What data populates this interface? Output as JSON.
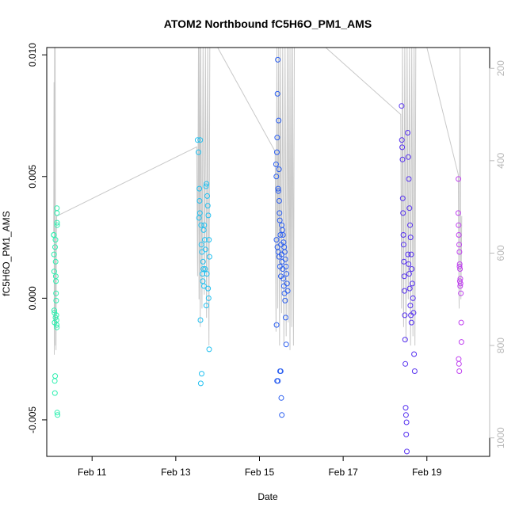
{
  "chart_data": {
    "type": "scatter",
    "title": "ATOM2 Northbound fC5H6O_PM1_AMS",
    "xlabel": "Date",
    "ylabel": "fC5H6O_PM1_AMS",
    "xlim": [
      "2016-02-09T22:00",
      "2016-02-20T12:00"
    ],
    "ylim": [
      -0.0065,
      0.0103
    ],
    "y_ticks": [
      "-0.005",
      "0.000",
      "0.005",
      "0.010"
    ],
    "x_ticks": [
      {
        "t": "2016-02-11T00:00",
        "label": "Feb 11"
      },
      {
        "t": "2016-02-13T00:00",
        "label": "Feb 13"
      },
      {
        "t": "2016-02-15T00:00",
        "label": "Feb 15"
      },
      {
        "t": "2016-02-17T00:00",
        "label": "Feb 17"
      },
      {
        "t": "2016-02-19T00:00",
        "label": "Feb 19"
      }
    ],
    "right_axis": {
      "ylim": [
        1040,
        155
      ],
      "ticks": [
        "200",
        "400",
        "600",
        "800",
        "1000"
      ],
      "color": "#bbbbbb"
    },
    "line_color": "#c8c8c8",
    "colors": [
      "#2ef0b0",
      "#22c0f0",
      "#2a5ef0",
      "#5530f0",
      "#c040f0"
    ],
    "altitude_trace": [
      [
        "2016-02-10T02:00",
        555
      ],
      [
        "2016-02-10T02:10",
        230
      ],
      [
        "2016-02-10T02:20",
        820
      ],
      [
        "2016-02-10T02:30",
        155
      ],
      [
        "2016-02-10T02:40",
        760
      ],
      [
        "2016-02-10T02:50",
        155
      ],
      [
        "2016-02-10T03:00",
        800
      ],
      [
        "2016-02-10T03:10",
        620
      ],
      [
        "2016-02-10T03:20",
        810
      ],
      [
        "2016-02-10T03:30",
        560
      ],
      [
        "2016-02-10T03:40",
        520
      ],
      [
        "2016-02-13T12:00",
        370
      ],
      [
        "2016-02-13T12:30",
        650
      ],
      [
        "2016-02-13T13:00",
        155
      ],
      [
        "2016-02-13T13:20",
        700
      ],
      [
        "2016-02-13T13:40",
        155
      ],
      [
        "2016-02-13T14:00",
        760
      ],
      [
        "2016-02-13T14:20",
        155
      ],
      [
        "2016-02-13T15:00",
        720
      ],
      [
        "2016-02-13T15:40",
        155
      ],
      [
        "2016-02-13T16:20",
        690
      ],
      [
        "2016-02-13T17:00",
        155
      ],
      [
        "2016-02-13T17:40",
        740
      ],
      [
        "2016-02-13T18:20",
        155
      ],
      [
        "2016-02-13T19:00",
        800
      ],
      [
        "2016-02-13T19:30",
        155
      ],
      [
        "2016-02-14T00:00",
        155
      ],
      [
        "2016-02-15T09:00",
        380
      ],
      [
        "2016-02-15T09:30",
        770
      ],
      [
        "2016-02-15T10:00",
        155
      ],
      [
        "2016-02-15T10:30",
        720
      ],
      [
        "2016-02-15T11:00",
        155
      ],
      [
        "2016-02-15T11:30",
        800
      ],
      [
        "2016-02-15T12:00",
        155
      ],
      [
        "2016-02-15T12:40",
        730
      ],
      [
        "2016-02-15T13:20",
        155
      ],
      [
        "2016-02-15T14:00",
        800
      ],
      [
        "2016-02-15T14:40",
        155
      ],
      [
        "2016-02-15T15:20",
        780
      ],
      [
        "2016-02-15T16:00",
        155
      ],
      [
        "2016-02-15T16:30",
        750
      ],
      [
        "2016-02-15T17:00",
        155
      ],
      [
        "2016-02-15T17:30",
        810
      ],
      [
        "2016-02-15T18:00",
        155
      ],
      [
        "2016-02-15T18:30",
        760
      ],
      [
        "2016-02-15T19:00",
        155
      ],
      [
        "2016-02-15T19:30",
        800
      ],
      [
        "2016-02-15T20:00",
        155
      ],
      [
        "2016-02-16T14:00",
        155
      ],
      [
        "2016-02-18T09:00",
        300
      ],
      [
        "2016-02-18T09:30",
        720
      ],
      [
        "2016-02-18T10:00",
        155
      ],
      [
        "2016-02-18T10:40",
        760
      ],
      [
        "2016-02-18T11:20",
        155
      ],
      [
        "2016-02-18T12:00",
        790
      ],
      [
        "2016-02-18T12:40",
        155
      ],
      [
        "2016-02-18T13:20",
        700
      ],
      [
        "2016-02-18T14:00",
        155
      ],
      [
        "2016-02-18T14:40",
        800
      ],
      [
        "2016-02-18T15:20",
        155
      ],
      [
        "2016-02-18T16:00",
        780
      ],
      [
        "2016-02-18T16:40",
        155
      ],
      [
        "2016-02-18T17:10",
        800
      ],
      [
        "2016-02-18T17:40",
        155
      ],
      [
        "2016-02-19T00:00",
        155
      ],
      [
        "2016-02-19T18:00",
        430
      ],
      [
        "2016-02-19T18:30",
        720
      ],
      [
        "2016-02-19T19:00",
        155
      ],
      [
        "2016-02-19T19:30",
        700
      ],
      [
        "2016-02-19T20:00",
        520
      ]
    ],
    "series": [
      {
        "values": [
          [
            "2016-02-10T02:00",
            0.0026
          ],
          [
            "2016-02-10T02:05",
            0.0026
          ],
          [
            "2016-02-10T02:10",
            0.0018
          ],
          [
            "2016-02-10T02:15",
            0.0011
          ],
          [
            "2016-02-10T02:20",
            -0.0005
          ],
          [
            "2016-02-10T02:25",
            -0.0006
          ],
          [
            "2016-02-10T02:30",
            -0.001
          ],
          [
            "2016-02-10T02:35",
            -0.0034
          ],
          [
            "2016-02-10T02:40",
            -0.0039
          ],
          [
            "2016-02-10T02:50",
            -0.0032
          ],
          [
            "2016-02-10T03:00",
            0.0024
          ],
          [
            "2016-02-10T03:05",
            0.0015
          ],
          [
            "2016-02-10T03:10",
            0.0009
          ],
          [
            "2016-02-10T03:15",
            0.0007
          ],
          [
            "2016-02-10T03:20",
            0.0002
          ],
          [
            "2016-02-10T03:25",
            -0.0001
          ],
          [
            "2016-02-10T03:30",
            -0.0007
          ],
          [
            "2016-02-10T03:35",
            -0.0009
          ],
          [
            "2016-02-10T03:40",
            -0.0011
          ],
          [
            "2016-02-10T03:45",
            -0.0012
          ],
          [
            "2016-02-10T03:50",
            0.0037
          ],
          [
            "2016-02-10T03:52",
            0.0035
          ],
          [
            "2016-02-10T03:54",
            0.0031
          ],
          [
            "2016-02-10T03:56",
            0.003
          ],
          [
            "2016-02-10T04:00",
            -0.0047
          ],
          [
            "2016-02-10T04:10",
            -0.0048
          ],
          [
            "2016-02-10T02:45",
            0.0021
          ],
          [
            "2016-02-10T03:00",
            -0.0008
          ]
        ]
      },
      {
        "values": [
          [
            "2016-02-13T12:30",
            0.0065
          ],
          [
            "2016-02-13T13:00",
            0.006
          ],
          [
            "2016-02-13T14:00",
            0.0065
          ],
          [
            "2016-02-13T13:30",
            0.0045
          ],
          [
            "2016-02-13T13:40",
            0.004
          ],
          [
            "2016-02-13T13:20",
            0.0033
          ],
          [
            "2016-02-13T13:50",
            0.0035
          ],
          [
            "2016-02-13T14:30",
            0.003
          ],
          [
            "2016-02-13T14:40",
            0.0022
          ],
          [
            "2016-02-13T15:00",
            0.0019
          ],
          [
            "2016-02-13T15:20",
            0.001
          ],
          [
            "2016-02-13T15:40",
            0.0015
          ],
          [
            "2016-02-13T16:00",
            0.0028
          ],
          [
            "2016-02-13T16:20",
            0.003
          ],
          [
            "2016-02-13T16:40",
            0.0024
          ],
          [
            "2016-02-13T17:00",
            0.002
          ],
          [
            "2016-02-13T17:20",
            0.0046
          ],
          [
            "2016-02-13T17:40",
            0.0047
          ],
          [
            "2016-02-13T18:00",
            0.0042
          ],
          [
            "2016-02-13T18:20",
            0.0038
          ],
          [
            "2016-02-13T18:40",
            0.0034
          ],
          [
            "2016-02-13T19:00",
            0.0024
          ],
          [
            "2016-02-13T14:10",
            -0.0009
          ],
          [
            "2016-02-13T14:50",
            -0.0031
          ],
          [
            "2016-02-13T14:20",
            -0.0035
          ],
          [
            "2016-02-13T19:10",
            -0.0021
          ],
          [
            "2016-02-13T16:10",
            0.0005
          ],
          [
            "2016-02-13T16:50",
            0.0012
          ],
          [
            "2016-02-13T17:50",
            0.001
          ],
          [
            "2016-02-13T18:30",
            0.0004
          ],
          [
            "2016-02-13T17:30",
            -0.0003
          ],
          [
            "2016-02-13T18:50",
            0.0
          ],
          [
            "2016-02-13T15:30",
            0.0007
          ],
          [
            "2016-02-13T19:20",
            0.0017
          ],
          [
            "2016-02-13T15:50",
            0.0012
          ]
        ]
      },
      {
        "values": [
          [
            "2016-02-15T09:30",
            0.0055
          ],
          [
            "2016-02-15T09:40",
            0.005
          ],
          [
            "2016-02-15T10:00",
            0.006
          ],
          [
            "2016-02-15T10:10",
            0.0066
          ],
          [
            "2016-02-15T10:20",
            0.0084
          ],
          [
            "2016-02-15T10:30",
            0.0098
          ],
          [
            "2016-02-15T11:00",
            0.0073
          ],
          [
            "2016-02-15T10:40",
            0.0045
          ],
          [
            "2016-02-15T10:50",
            0.0044
          ],
          [
            "2016-02-15T11:10",
            0.0053
          ],
          [
            "2016-02-15T11:20",
            0.004
          ],
          [
            "2016-02-15T11:30",
            0.0035
          ],
          [
            "2016-02-15T11:40",
            0.0032
          ],
          [
            "2016-02-15T12:00",
            0.0026
          ],
          [
            "2016-02-15T12:20",
            0.0022
          ],
          [
            "2016-02-15T12:40",
            0.0018
          ],
          [
            "2016-02-15T13:00",
            0.0015
          ],
          [
            "2016-02-15T13:20",
            0.0012
          ],
          [
            "2016-02-15T13:40",
            0.0008
          ],
          [
            "2016-02-15T14:00",
            0.0005
          ],
          [
            "2016-02-15T14:20",
            0.0002
          ],
          [
            "2016-02-15T14:40",
            -0.0001
          ],
          [
            "2016-02-15T15:00",
            -0.0008
          ],
          [
            "2016-02-15T09:50",
            -0.0011
          ],
          [
            "2016-02-15T10:05",
            -0.0034
          ],
          [
            "2016-02-15T10:35",
            -0.0034
          ],
          [
            "2016-02-15T11:50",
            -0.003
          ],
          [
            "2016-02-15T12:10",
            -0.003
          ],
          [
            "2016-02-15T12:30",
            -0.0041
          ],
          [
            "2016-02-15T12:50",
            -0.0048
          ],
          [
            "2016-02-15T15:20",
            -0.0019
          ],
          [
            "2016-02-15T09:45",
            0.0024
          ],
          [
            "2016-02-15T10:15",
            0.0021
          ],
          [
            "2016-02-15T10:45",
            0.0019
          ],
          [
            "2016-02-15T11:15",
            0.0017
          ],
          [
            "2016-02-15T11:45",
            0.0013
          ],
          [
            "2016-02-15T12:15",
            0.0009
          ],
          [
            "2016-02-15T12:45",
            0.003
          ],
          [
            "2016-02-15T13:10",
            0.0028
          ],
          [
            "2016-02-15T13:30",
            0.0026
          ],
          [
            "2016-02-15T13:50",
            0.0023
          ],
          [
            "2016-02-15T14:10",
            0.0021
          ],
          [
            "2016-02-15T14:30",
            0.0019
          ],
          [
            "2016-02-15T14:50",
            0.0016
          ],
          [
            "2016-02-15T15:10",
            0.0013
          ],
          [
            "2016-02-15T15:30",
            0.001
          ],
          [
            "2016-02-15T15:50",
            0.0006
          ],
          [
            "2016-02-15T16:10",
            0.0003
          ]
        ]
      },
      {
        "values": [
          [
            "2016-02-18T09:30",
            0.0079
          ],
          [
            "2016-02-18T09:40",
            0.0065
          ],
          [
            "2016-02-18T09:50",
            0.0062
          ],
          [
            "2016-02-18T10:00",
            0.0057
          ],
          [
            "2016-02-18T10:10",
            0.0041
          ],
          [
            "2016-02-18T10:20",
            0.0035
          ],
          [
            "2016-02-18T10:30",
            0.0026
          ],
          [
            "2016-02-18T10:40",
            0.0022
          ],
          [
            "2016-02-18T10:50",
            0.0015
          ],
          [
            "2016-02-18T11:00",
            0.0009
          ],
          [
            "2016-02-18T11:10",
            0.0003
          ],
          [
            "2016-02-18T11:20",
            -0.0007
          ],
          [
            "2016-02-18T11:30",
            -0.0017
          ],
          [
            "2016-02-18T11:40",
            -0.0027
          ],
          [
            "2016-02-18T11:50",
            -0.0045
          ],
          [
            "2016-02-18T12:00",
            -0.0048
          ],
          [
            "2016-02-18T12:10",
            -0.0056
          ],
          [
            "2016-02-18T12:20",
            -0.0051
          ],
          [
            "2016-02-18T12:30",
            -0.0063
          ],
          [
            "2016-02-18T13:00",
            0.0068
          ],
          [
            "2016-02-18T13:20",
            0.0058
          ],
          [
            "2016-02-18T13:40",
            0.0049
          ],
          [
            "2016-02-18T14:00",
            0.0037
          ],
          [
            "2016-02-18T14:20",
            0.003
          ],
          [
            "2016-02-18T14:40",
            0.0025
          ],
          [
            "2016-02-18T15:00",
            0.0018
          ],
          [
            "2016-02-18T15:20",
            0.0012
          ],
          [
            "2016-02-18T15:40",
            0.0006
          ],
          [
            "2016-02-18T16:00",
            0.0
          ],
          [
            "2016-02-18T16:20",
            -0.0006
          ],
          [
            "2016-02-18T16:40",
            -0.0023
          ],
          [
            "2016-02-18T17:00",
            -0.003
          ],
          [
            "2016-02-18T13:10",
            0.0018
          ],
          [
            "2016-02-18T13:30",
            0.0014
          ],
          [
            "2016-02-18T13:50",
            0.001
          ],
          [
            "2016-02-18T14:10",
            0.0004
          ],
          [
            "2016-02-18T14:30",
            -0.0003
          ],
          [
            "2016-02-18T14:50",
            -0.0007
          ],
          [
            "2016-02-18T15:10",
            -0.001
          ]
        ]
      },
      {
        "values": [
          [
            "2016-02-19T18:00",
            0.0035
          ],
          [
            "2016-02-19T18:10",
            0.003
          ],
          [
            "2016-02-19T18:20",
            0.0026
          ],
          [
            "2016-02-19T18:30",
            0.0022
          ],
          [
            "2016-02-19T18:40",
            0.0019
          ],
          [
            "2016-02-19T18:50",
            0.0014
          ],
          [
            "2016-02-19T19:00",
            0.0012
          ],
          [
            "2016-02-19T19:10",
            0.0008
          ],
          [
            "2016-02-19T19:20",
            0.0006
          ],
          [
            "2016-02-19T19:30",
            0.0002
          ],
          [
            "2016-02-19T19:40",
            -0.001
          ],
          [
            "2016-02-19T19:50",
            -0.0018
          ],
          [
            "2016-02-19T18:05",
            0.0049
          ],
          [
            "2016-02-19T18:15",
            -0.0025
          ],
          [
            "2016-02-19T18:25",
            -0.0027
          ],
          [
            "2016-02-19T18:35",
            -0.003
          ],
          [
            "2016-02-19T18:45",
            0.0013
          ],
          [
            "2016-02-19T18:55",
            0.0007
          ],
          [
            "2016-02-19T19:05",
            0.0005
          ]
        ]
      }
    ]
  }
}
